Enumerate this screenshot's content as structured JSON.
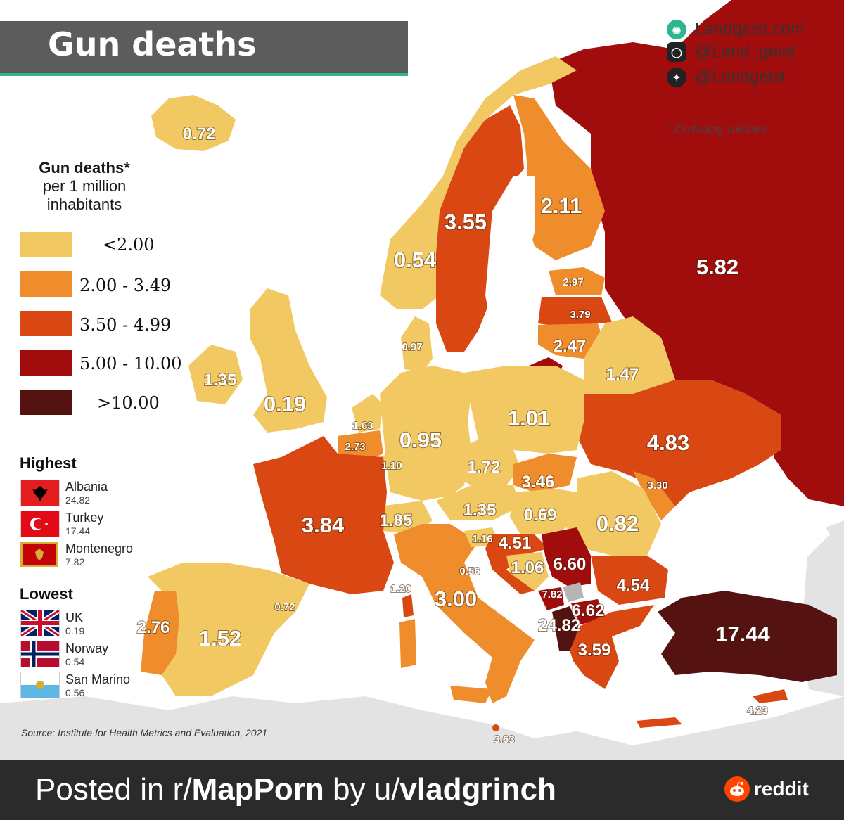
{
  "title": "Gun deaths",
  "brand": {
    "site": "Landgeist.com",
    "instagram": "@Land_geist",
    "twitter": "@Landgeist"
  },
  "note": "* Excluding suicides",
  "legend": {
    "title_line1": "Gun deaths*",
    "title_line2": "per 1 million",
    "title_line3": "inhabitants",
    "bins": [
      {
        "label": "<2.00",
        "color": "#f2c862"
      },
      {
        "label": "2.00  -  3.49",
        "color": "#ef8c2c"
      },
      {
        "label": "3.50  -  4.99",
        "color": "#d94712"
      },
      {
        "label": "5.00  - 10.00",
        "color": "#a10c0c"
      },
      {
        "label": ">10.00",
        "color": "#541210"
      }
    ]
  },
  "highest": {
    "title": "Highest",
    "items": [
      {
        "country": "Albania",
        "value": "24.82"
      },
      {
        "country": "Turkey",
        "value": "17.44"
      },
      {
        "country": "Montenegro",
        "value": "7.82"
      }
    ]
  },
  "lowest": {
    "title": "Lowest",
    "items": [
      {
        "country": "UK",
        "value": "0.19"
      },
      {
        "country": "Norway",
        "value": "0.54"
      },
      {
        "country": "San Marino",
        "value": "0.56"
      }
    ]
  },
  "source": "Source: Institute for Health Metrics and Evaluation, 2021",
  "footer": {
    "prefix": "Posted in r/",
    "sub": "MapPorn",
    "mid": " by u/",
    "user": "vladgrinch",
    "reddit": "reddit"
  },
  "map_values": {
    "iceland": "0.72",
    "norway": "0.54",
    "sweden": "3.55",
    "finland": "2.11",
    "russia": "5.82",
    "estonia": "2.97",
    "latvia": "3.79",
    "lithuania": "2.47",
    "belarus": "1.47",
    "ukraine": "4.83",
    "denmark": "0.97",
    "ireland": "1.35",
    "uk": "0.19",
    "netherlands": "1.63",
    "belgium": "2.73",
    "luxembourg": "1.10",
    "germany": "0.95",
    "poland": "1.01",
    "czechia": "1.72",
    "slovakia": "3.46",
    "moldova": "3.30",
    "austria": "1.35",
    "hungary": "0.69",
    "romania": "0.82",
    "switzerland": "1.85",
    "slovenia": "1.16",
    "croatia": "4.51",
    "bosnia": "1.06",
    "serbia": "6.60",
    "san_marino": "0.56",
    "italy": "3.00",
    "corsica": "1.20",
    "andorra": "0.72",
    "montenegro": "7.82",
    "north_macedonia": "6.62",
    "albania": "24.82",
    "bulgaria": "4.54",
    "greece": "3.59",
    "turkey": "17.44",
    "cyprus": "4.23",
    "malta": "3.63",
    "portugal": "2.76",
    "spain": "1.52",
    "france": "3.84"
  }
}
